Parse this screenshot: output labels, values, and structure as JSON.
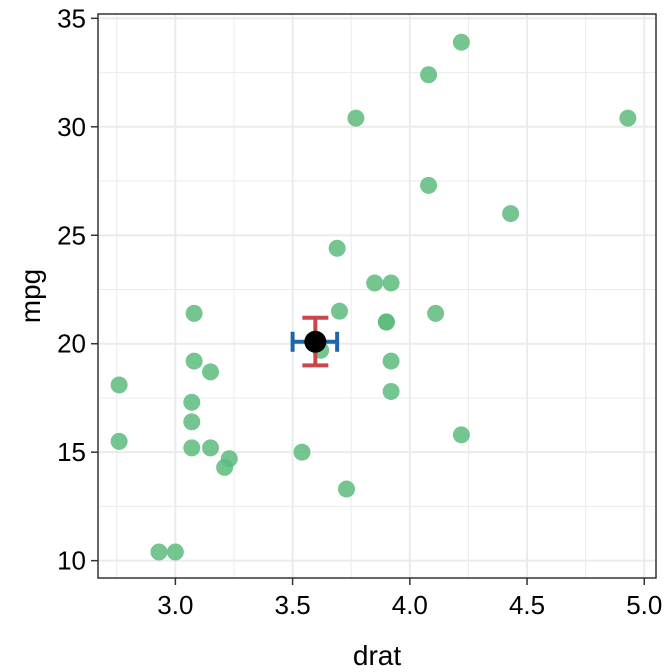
{
  "chart_data": {
    "type": "scatter",
    "xlabel": "drat",
    "ylabel": "mpg",
    "xlim": [
      2.67,
      5.05
    ],
    "ylim": [
      9.2,
      35.2
    ],
    "x_ticks": [
      3.0,
      3.5,
      4.0,
      4.5,
      5.0
    ],
    "x_tick_labels": [
      "3.0",
      "3.5",
      "4.0",
      "4.5",
      "5.0"
    ],
    "y_ticks": [
      10,
      15,
      20,
      25,
      30,
      35
    ],
    "y_tick_labels": [
      "10",
      "15",
      "20",
      "25",
      "30",
      "35"
    ],
    "grid": true,
    "series": [
      {
        "point_color": "#5cbb7d",
        "points": [
          {
            "x": 3.9,
            "y": 21.0
          },
          {
            "x": 3.9,
            "y": 21.0
          },
          {
            "x": 3.85,
            "y": 22.8
          },
          {
            "x": 3.08,
            "y": 21.4
          },
          {
            "x": 3.15,
            "y": 18.7
          },
          {
            "x": 2.76,
            "y": 18.1
          },
          {
            "x": 3.21,
            "y": 14.3
          },
          {
            "x": 3.69,
            "y": 24.4
          },
          {
            "x": 3.92,
            "y": 22.8
          },
          {
            "x": 3.92,
            "y": 19.2
          },
          {
            "x": 3.92,
            "y": 17.8
          },
          {
            "x": 3.07,
            "y": 16.4
          },
          {
            "x": 3.07,
            "y": 17.3
          },
          {
            "x": 3.07,
            "y": 15.2
          },
          {
            "x": 2.93,
            "y": 10.4
          },
          {
            "x": 3.0,
            "y": 10.4
          },
          {
            "x": 3.23,
            "y": 14.7
          },
          {
            "x": 4.08,
            "y": 32.4
          },
          {
            "x": 4.93,
            "y": 30.4
          },
          {
            "x": 4.22,
            "y": 33.9
          },
          {
            "x": 3.7,
            "y": 21.5
          },
          {
            "x": 2.76,
            "y": 15.5
          },
          {
            "x": 3.15,
            "y": 15.2
          },
          {
            "x": 3.73,
            "y": 13.3
          },
          {
            "x": 3.08,
            "y": 19.2
          },
          {
            "x": 4.08,
            "y": 27.3
          },
          {
            "x": 4.43,
            "y": 26.0
          },
          {
            "x": 3.77,
            "y": 30.4
          },
          {
            "x": 4.22,
            "y": 15.8
          },
          {
            "x": 3.62,
            "y": 19.7
          },
          {
            "x": 3.54,
            "y": 15.0
          },
          {
            "x": 4.11,
            "y": 21.4
          }
        ]
      }
    ],
    "summary": {
      "mean_x": 3.597,
      "mean_y": 20.09,
      "y_interval": [
        19.0,
        21.2
      ],
      "x_interval": [
        3.5,
        3.69
      ],
      "mean_color": "#000000",
      "y_error_color": "#c8474b",
      "x_error_color": "#1f66a8"
    }
  }
}
